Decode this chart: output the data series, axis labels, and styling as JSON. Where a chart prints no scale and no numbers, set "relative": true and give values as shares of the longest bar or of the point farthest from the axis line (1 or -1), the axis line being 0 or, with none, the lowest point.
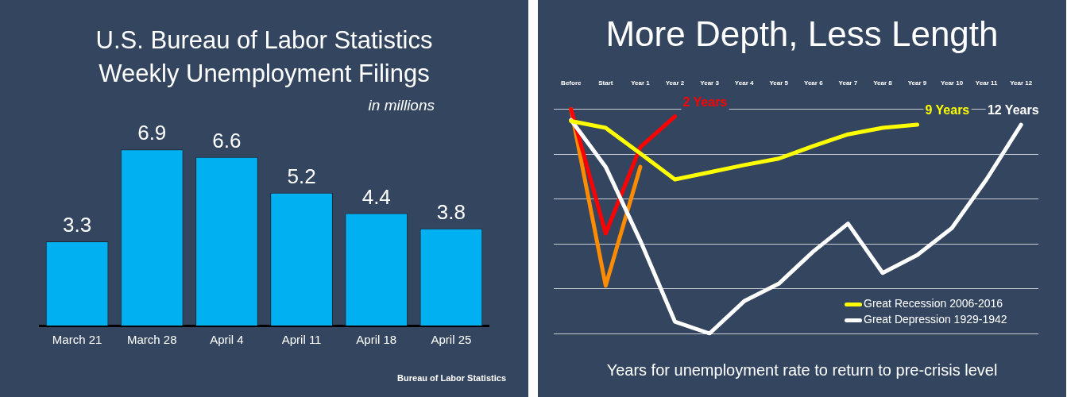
{
  "chart_data": [
    {
      "type": "bar",
      "title": "U.S. Bureau of Labor Statistics Weekly Unemployment Filings",
      "subtitle": "in millions",
      "categories": [
        "March 21",
        "March 28",
        "April 4",
        "April 11",
        "April 18",
        "April 25"
      ],
      "values": [
        3.3,
        6.9,
        6.6,
        5.2,
        4.4,
        3.8
      ],
      "color": "#00b0f0",
      "data_labels": true,
      "grid": false,
      "annotations": [
        "Bureau of Labor Statistics"
      ]
    },
    {
      "type": "line",
      "title": "More Depth, Less Length",
      "xlabel": "Years for unemployment rate to return to pre-crisis level",
      "relative": true,
      "grid": "y",
      "legend": "bottom right",
      "marker": "none",
      "categories": [
        "Before",
        "Start",
        "Year 1",
        "Year 2",
        "Year 3",
        "Year 4",
        "Year 5",
        "Year 6",
        "Year 7",
        "Year 8",
        "Year 9",
        "Year 10",
        "Year 11",
        "Year 12"
      ],
      "series": [
        {
          "name": "Great Recession 2006-2016",
          "color": "#ffff00",
          "values": [
            0.947,
            0.917,
            0.803,
            0.687,
            0.719,
            0.751,
            0.78,
            0.836,
            0.888,
            0.917,
            0.931,
            null,
            null,
            null
          ]
        },
        {
          "name": "Great Depression 1929-1942",
          "color": "#ffffff",
          "values": [
            0.952,
            0.743,
            0.414,
            0.053,
            0,
            0.144,
            0.222,
            0.366,
            0.49,
            0.27,
            0.35,
            0.47,
            0.687,
            0.931
          ]
        },
        {
          "color": "#ff0000",
          "values": [
            1,
            0.446,
            0.831,
            0.968,
            null,
            null,
            null,
            null,
            null,
            null,
            null,
            null,
            null,
            null
          ]
        },
        {
          "color": "#ff8c00",
          "values": [
            1,
            0.213,
            0.743,
            null,
            null,
            null,
            null,
            null,
            null,
            null,
            null,
            null,
            null,
            null
          ]
        }
      ],
      "annotations": [
        {
          "text": "2 Years",
          "x": "Year 2",
          "y": 0.968
        },
        {
          "text": "9 Years",
          "x": "Year 9",
          "y": 0.931
        },
        {
          "text": "12 Years",
          "x": "Year 12",
          "y": 0.931
        }
      ]
    }
  ]
}
